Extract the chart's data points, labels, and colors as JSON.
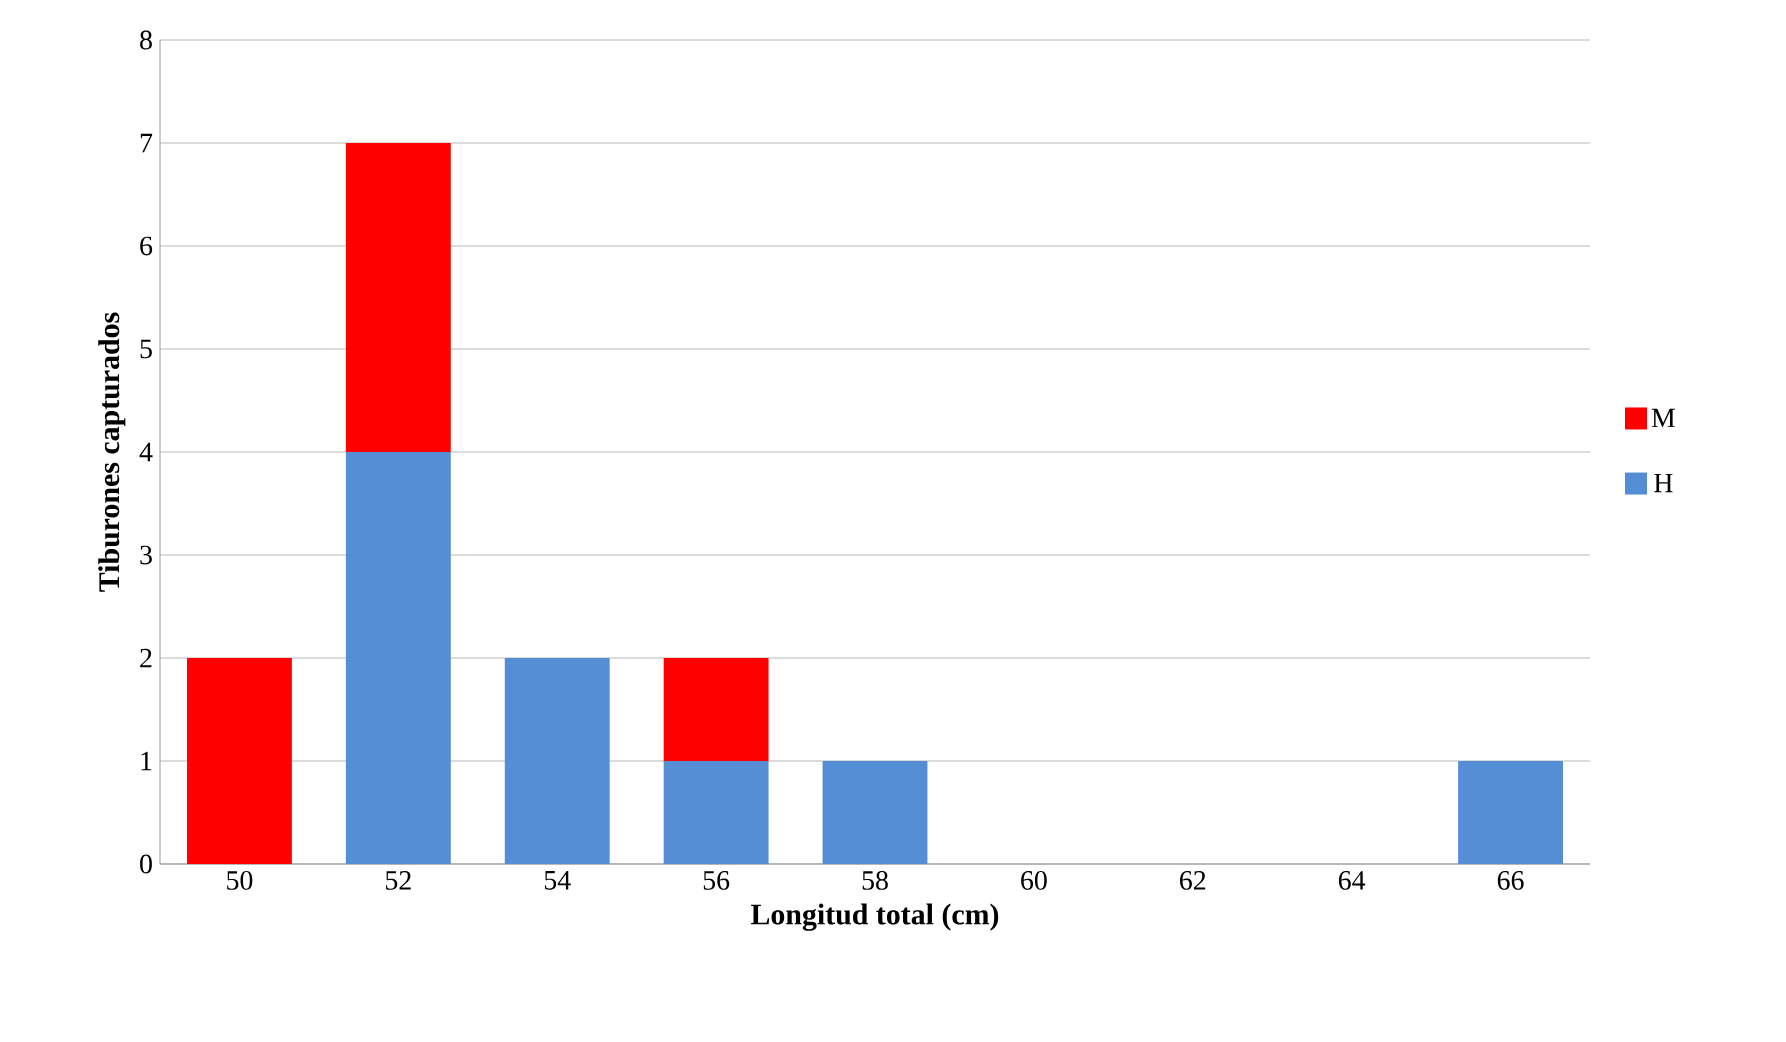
{
  "chart_data": {
    "type": "bar",
    "stacked": true,
    "xlabel": "Longitud total (cm)",
    "ylabel": "Tiburones capturados",
    "categories": [
      "50",
      "52",
      "54",
      "56",
      "58",
      "60",
      "62",
      "64",
      "66"
    ],
    "series": [
      {
        "name": "H",
        "color": "#558ed5",
        "values": [
          0,
          4,
          2,
          1,
          1,
          0,
          0,
          0,
          1
        ]
      },
      {
        "name": "M",
        "color": "#ff0000",
        "values": [
          2,
          3,
          0,
          1,
          0,
          0,
          0,
          0,
          0
        ]
      }
    ],
    "ylim": [
      0,
      8
    ],
    "yticks": [
      0,
      1,
      2,
      3,
      4,
      5,
      6,
      7,
      8
    ],
    "grid": "y",
    "legend": "right"
  }
}
